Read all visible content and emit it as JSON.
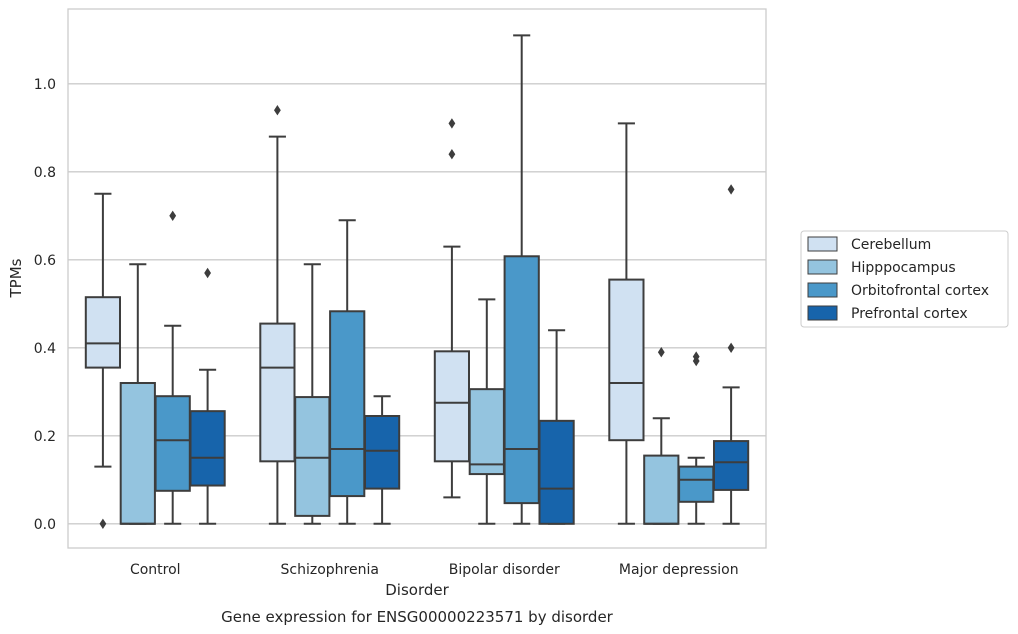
{
  "chart_data": {
    "type": "box",
    "caption": "Gene expression for ENSG00000223571 by disorder",
    "xlabel": "Disorder",
    "ylabel": "TPMs",
    "ylim": [
      -0.055,
      1.17
    ],
    "yticks": [
      0.0,
      0.2,
      0.4,
      0.6,
      0.8,
      1.0
    ],
    "ytick_labels": [
      "0.0",
      "0.2",
      "0.4",
      "0.6",
      "0.8",
      "1.0"
    ],
    "grid": "horizontal",
    "legend_position": "right",
    "categories": [
      "Control",
      "Schizophrenia",
      "Bipolar disorder",
      "Major depression"
    ],
    "series": [
      {
        "name": "Cerebellum",
        "color": "#d0e1f2",
        "boxes": [
          {
            "whisker_low": 0.13,
            "q1": 0.355,
            "median": 0.41,
            "q3": 0.515,
            "whisker_high": 0.75,
            "outliers": [
              0.0
            ]
          },
          {
            "whisker_low": 0.0,
            "q1": 0.142,
            "median": 0.355,
            "q3": 0.455,
            "whisker_high": 0.88,
            "outliers": [
              0.94
            ]
          },
          {
            "whisker_low": 0.06,
            "q1": 0.142,
            "median": 0.275,
            "q3": 0.392,
            "whisker_high": 0.63,
            "outliers": [
              0.84,
              0.91
            ]
          },
          {
            "whisker_low": 0.0,
            "q1": 0.19,
            "median": 0.32,
            "q3": 0.555,
            "whisker_high": 0.91,
            "outliers": []
          }
        ]
      },
      {
        "name": "Hipppocampus",
        "color": "#94c4df",
        "boxes": [
          {
            "whisker_low": 0.0,
            "q1": 0.0,
            "median": 0.0,
            "q3": 0.32,
            "whisker_high": 0.59,
            "outliers": []
          },
          {
            "whisker_low": 0.0,
            "q1": 0.018,
            "median": 0.15,
            "q3": 0.288,
            "whisker_high": 0.59,
            "outliers": []
          },
          {
            "whisker_low": 0.0,
            "q1": 0.113,
            "median": 0.135,
            "q3": 0.306,
            "whisker_high": 0.51,
            "outliers": []
          },
          {
            "whisker_low": 0.0,
            "q1": 0.0,
            "median": 0.0,
            "q3": 0.155,
            "whisker_high": 0.24,
            "outliers": [
              0.39
            ]
          }
        ]
      },
      {
        "name": "Orbitofrontal cortex",
        "color": "#4a98c9",
        "boxes": [
          {
            "whisker_low": 0.0,
            "q1": 0.075,
            "median": 0.19,
            "q3": 0.29,
            "whisker_high": 0.45,
            "outliers": [
              0.7
            ]
          },
          {
            "whisker_low": 0.0,
            "q1": 0.063,
            "median": 0.17,
            "q3": 0.483,
            "whisker_high": 0.69,
            "outliers": []
          },
          {
            "whisker_low": 0.0,
            "q1": 0.047,
            "median": 0.17,
            "q3": 0.608,
            "whisker_high": 1.11,
            "outliers": []
          },
          {
            "whisker_low": 0.0,
            "q1": 0.05,
            "median": 0.1,
            "q3": 0.13,
            "whisker_high": 0.15,
            "outliers": [
              0.37,
              0.38
            ]
          }
        ]
      },
      {
        "name": "Prefrontal cortex",
        "color": "#1764ab",
        "boxes": [
          {
            "whisker_low": 0.0,
            "q1": 0.087,
            "median": 0.15,
            "q3": 0.256,
            "whisker_high": 0.35,
            "outliers": [
              0.57
            ]
          },
          {
            "whisker_low": 0.0,
            "q1": 0.08,
            "median": 0.166,
            "q3": 0.245,
            "whisker_high": 0.29,
            "outliers": []
          },
          {
            "whisker_low": 0.0,
            "q1": 0.0,
            "median": 0.08,
            "q3": 0.234,
            "whisker_high": 0.44,
            "outliers": []
          },
          {
            "whisker_low": 0.0,
            "q1": 0.077,
            "median": 0.14,
            "q3": 0.188,
            "whisker_high": 0.31,
            "outliers": [
              0.4,
              0.76
            ]
          }
        ]
      }
    ]
  }
}
